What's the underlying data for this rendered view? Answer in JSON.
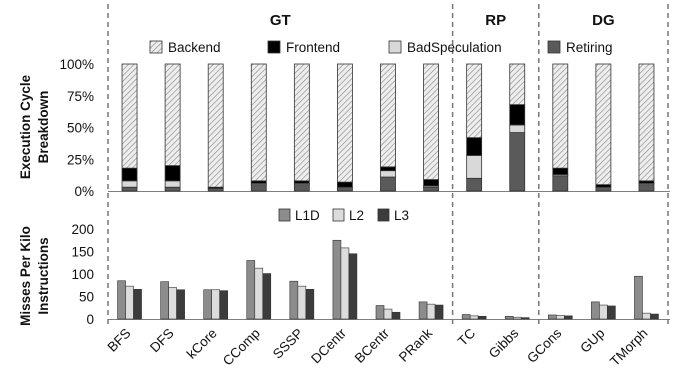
{
  "chart_data": [
    {
      "type": "bar",
      "stacked": true,
      "ylabel": [
        "Execution Cycle",
        "Breakdown"
      ],
      "yticks": [
        "0%",
        "25%",
        "50%",
        "75%",
        "100%"
      ],
      "ylim": [
        0,
        100
      ],
      "legend": [
        "Backend",
        "Frontend",
        "BadSpeculation",
        "Retiring"
      ],
      "categories": [
        "BFS",
        "DFS",
        "kCore",
        "CComp",
        "SSSP",
        "DCentr",
        "BCentr",
        "PRank",
        "TC",
        "Gibbs",
        "GCons",
        "GUp",
        "TMorph"
      ],
      "series": [
        {
          "name": "Retiring",
          "color": "#5a5a5a",
          "values": [
            3,
            3,
            2,
            5,
            5,
            3,
            11,
            3,
            10,
            46,
            12,
            3,
            5
          ]
        },
        {
          "name": "BadSpeculation",
          "color": "#d9d9d9",
          "values": [
            5,
            5,
            0,
            1,
            1,
            0,
            5,
            1,
            18,
            6,
            1,
            0,
            1
          ]
        },
        {
          "name": "Frontend",
          "color": "#000000",
          "values": [
            10,
            12,
            1,
            2,
            2,
            4,
            3,
            5,
            14,
            16,
            5,
            2,
            2
          ]
        },
        {
          "name": "Backend",
          "color": "#eeeeee",
          "values": [
            82,
            80,
            97,
            92,
            92,
            93,
            81,
            91,
            58,
            32,
            82,
            95,
            92
          ]
        }
      ]
    },
    {
      "type": "bar",
      "ylabel": [
        "Misses Per Kilo",
        "Instructions"
      ],
      "yticks": [
        "0",
        "50",
        "100",
        "150",
        "200"
      ],
      "ylim": [
        0,
        200
      ],
      "legend": [
        "L1D",
        "L2",
        "L3"
      ],
      "categories": [
        "BFS",
        "DFS",
        "kCore",
        "CComp",
        "SSSP",
        "DCentr",
        "BCentr",
        "PRank",
        "TC",
        "Gibbs",
        "GCons",
        "GUp",
        "TMorph"
      ],
      "series": [
        {
          "name": "L1D",
          "color": "#8c8c8c",
          "values": [
            85,
            83,
            65,
            130,
            84,
            175,
            30,
            38,
            10,
            6,
            9,
            38,
            95
          ]
        },
        {
          "name": "L2",
          "color": "#dcdcdc",
          "values": [
            73,
            70,
            65,
            113,
            73,
            158,
            22,
            33,
            7,
            4,
            8,
            31,
            13
          ]
        },
        {
          "name": "L3",
          "color": "#3c3c3c",
          "values": [
            66,
            65,
            63,
            101,
            66,
            145,
            15,
            31,
            6,
            3,
            7,
            29,
            11
          ]
        }
      ]
    }
  ],
  "groups": [
    {
      "name": "GT",
      "from": 0,
      "to": 7
    },
    {
      "name": "RP",
      "from": 8,
      "to": 9
    },
    {
      "name": "DG",
      "from": 10,
      "to": 12
    }
  ]
}
